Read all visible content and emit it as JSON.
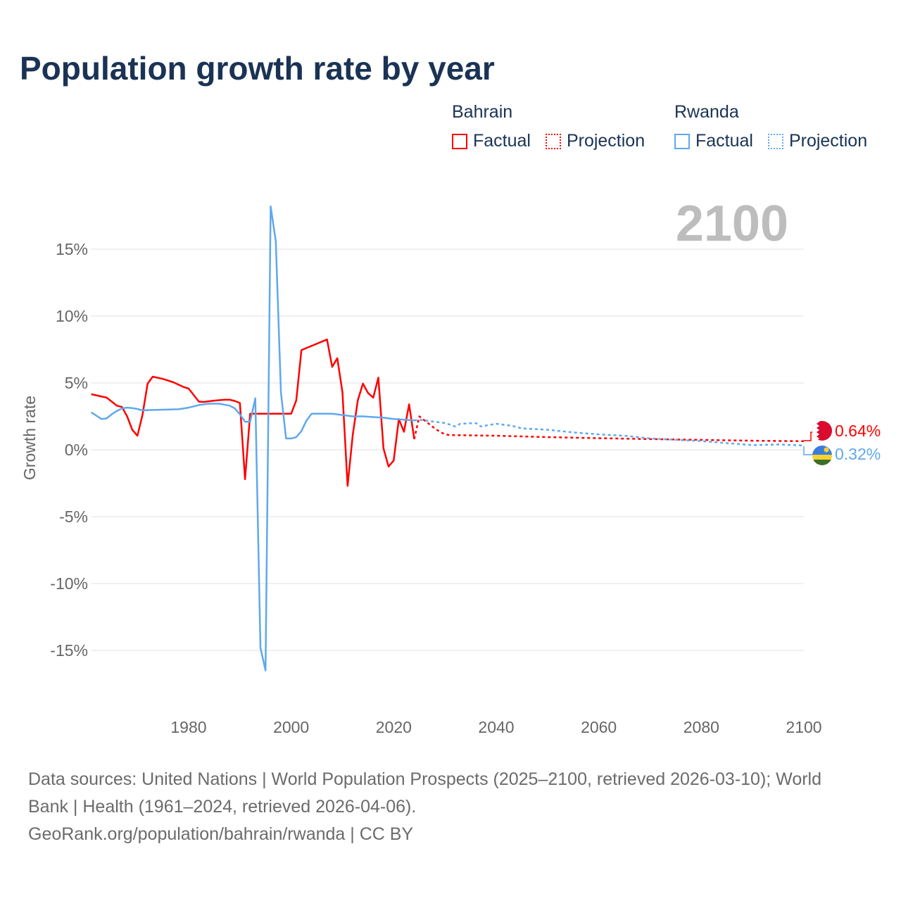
{
  "title": "Population growth rate by year",
  "legend": {
    "groups": [
      {
        "name": "Bahrain",
        "color": "#ff0000",
        "items": [
          "Factual",
          "Projection"
        ]
      },
      {
        "name": "Rwanda",
        "color": "#5fa8ee",
        "items": [
          "Factual",
          "Projection"
        ]
      }
    ]
  },
  "year_label": "2100",
  "end_labels": [
    {
      "country": "Bahrain",
      "value": "0.64%",
      "flag": "bahrain-flag-icon"
    },
    {
      "country": "Rwanda",
      "value": "0.32%",
      "flag": "rwanda-flag-icon"
    }
  ],
  "footer": {
    "sources": "Data sources: United Nations | World Population Prospects (2025–2100, retrieved 2026-03-10); World Bank | Health (1961–2024, retrieved 2026-04-06).",
    "link": "GeoRank.org/population/bahrain/rwanda | CC BY"
  },
  "chart_data": {
    "type": "line",
    "title": "Population growth rate by year",
    "xlabel": "",
    "ylabel": "Growth rate",
    "xlim": [
      1961,
      2100
    ],
    "ylim": [
      -17,
      19
    ],
    "x_ticks": [
      1980,
      2000,
      2020,
      2040,
      2060,
      2080,
      2100
    ],
    "y_ticks": [
      15,
      10,
      5,
      0,
      -5,
      -10,
      -15
    ],
    "y_tick_labels": [
      "15%",
      "10%",
      "5%",
      "0%",
      "-5%",
      "-10%",
      "-15%"
    ],
    "grid": true,
    "legend_position": "top-right",
    "series": [
      {
        "name": "Bahrain Factual",
        "color": "#ff0000",
        "dashed": false,
        "x": [
          1961,
          1964,
          1966,
          1967,
          1968,
          1969,
          1970,
          1971,
          1972,
          1973,
          1975,
          1977,
          1979,
          1980,
          1982,
          1983,
          1985,
          1987,
          1988,
          1989,
          1990,
          1991,
          1992,
          1993,
          1994,
          1995,
          1996,
          1997,
          1998,
          1999,
          2000,
          2001,
          2002,
          2007,
          2008,
          2009,
          2010,
          2011,
          2012,
          2013,
          2014,
          2015,
          2016,
          2017,
          2018,
          2019,
          2020,
          2021,
          2022,
          2023,
          2024
        ],
        "y": [
          4.16,
          3.9,
          3.3,
          3.2,
          2.5,
          1.5,
          1.05,
          2.6,
          4.95,
          5.47,
          5.3,
          5.05,
          4.7,
          4.58,
          3.6,
          3.58,
          3.68,
          3.74,
          3.74,
          3.65,
          3.5,
          -2.2,
          2.7,
          2.7,
          2.7,
          2.7,
          2.7,
          2.7,
          2.7,
          2.7,
          2.7,
          3.7,
          7.45,
          8.25,
          6.2,
          6.85,
          4.3,
          -2.7,
          1.1,
          3.7,
          4.95,
          4.25,
          3.9,
          5.4,
          0.1,
          -1.25,
          -0.8,
          2.3,
          1.35,
          3.4,
          0.8
        ]
      },
      {
        "name": "Bahrain Projection",
        "color": "#ff0000",
        "dashed": true,
        "x": [
          2024,
          2025,
          2026,
          2027,
          2028,
          2029,
          2030,
          2031,
          2040,
          2050,
          2060,
          2070,
          2080,
          2090,
          2100
        ],
        "y": [
          0.8,
          2.5,
          2.2,
          1.9,
          1.6,
          1.35,
          1.15,
          1.1,
          1.05,
          0.95,
          0.87,
          0.8,
          0.74,
          0.68,
          0.64
        ]
      },
      {
        "name": "Rwanda Factual",
        "color": "#5fa8ee",
        "dashed": false,
        "x": [
          1961,
          1962,
          1963,
          1964,
          1965,
          1966,
          1967,
          1968,
          1969,
          1970,
          1971,
          1972,
          1975,
          1978,
          1980,
          1982,
          1984,
          1986,
          1988,
          1989,
          1990,
          1991,
          1992,
          1993,
          1994,
          1995,
          1996,
          1997,
          1998,
          1999,
          2000,
          2001,
          2002,
          2003,
          2004,
          2008,
          2010,
          2012,
          2014,
          2016,
          2018,
          2020,
          2022,
          2024
        ],
        "y": [
          2.8,
          2.55,
          2.3,
          2.35,
          2.65,
          2.9,
          3.1,
          3.15,
          3.12,
          3.05,
          2.95,
          2.97,
          3.0,
          3.03,
          3.15,
          3.35,
          3.45,
          3.45,
          3.3,
          3.1,
          2.65,
          2.1,
          2.1,
          3.85,
          -14.8,
          -16.5,
          18.2,
          15.6,
          4.3,
          0.85,
          0.85,
          0.95,
          1.4,
          2.2,
          2.7,
          2.7,
          2.6,
          2.5,
          2.5,
          2.45,
          2.4,
          2.3,
          2.25,
          2.2
        ]
      },
      {
        "name": "Rwanda Projection",
        "color": "#5fa8ee",
        "dashed": true,
        "x": [
          2024,
          2025,
          2030,
          2032,
          2033,
          2036,
          2037,
          2040,
          2043,
          2045,
          2050,
          2055,
          2060,
          2065,
          2070,
          2080,
          2085,
          2090,
          2095,
          2100
        ],
        "y": [
          2.2,
          2.25,
          2.0,
          1.75,
          1.95,
          2.0,
          1.75,
          1.95,
          1.8,
          1.6,
          1.5,
          1.3,
          1.15,
          1.05,
          0.85,
          0.65,
          0.5,
          0.35,
          0.4,
          0.32
        ]
      }
    ]
  }
}
